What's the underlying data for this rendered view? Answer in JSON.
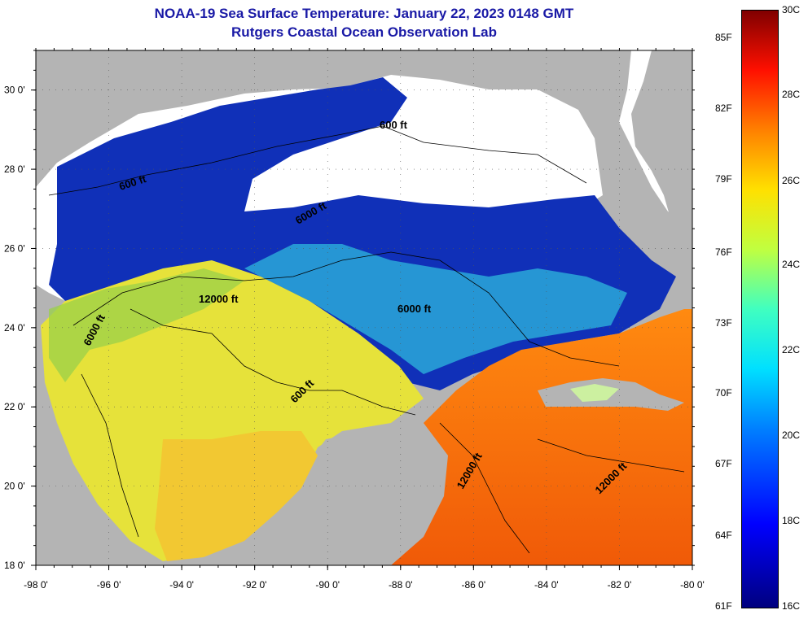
{
  "header": {
    "title": "NOAA-19 Sea Surface Temperature:  January 22, 2023 0148 GMT",
    "subtitle": "Rutgers Coastal Ocean Observation Lab"
  },
  "map": {
    "lon_range": [
      -98,
      -80
    ],
    "lat_range": [
      18,
      31
    ],
    "x_ticks": [
      "-98 0'",
      "-96 0'",
      "-94 0'",
      "-92 0'",
      "-90 0'",
      "-88 0'",
      "-86 0'",
      "-84 0'",
      "-82 0'",
      "-80 0'"
    ],
    "y_ticks": [
      "18 0'",
      "20 0'",
      "22 0'",
      "24 0'",
      "26 0'",
      "28 0'",
      "30 0'"
    ],
    "contour_labels": {
      "c1": "600 ft",
      "c2": "600 ft",
      "c3": "6000 ft",
      "c4": "12000 ft",
      "c5": "6000 ft",
      "c6": "6000 ft",
      "c7": "600 ft",
      "c8": "12000 ft",
      "c9": "12000 ft"
    },
    "colors": {
      "land": "#b4b4b4",
      "cloud": "#ffffff",
      "cold": "#00169e",
      "warm": "#f07010"
    }
  },
  "colorbar": {
    "fahrenheit": [
      "85F",
      "82F",
      "79F",
      "76F",
      "73F",
      "70F",
      "67F",
      "64F",
      "61F"
    ],
    "celsius": [
      "30C",
      "28C",
      "26C",
      "24C",
      "22C",
      "20C",
      "18C",
      "16C"
    ]
  }
}
